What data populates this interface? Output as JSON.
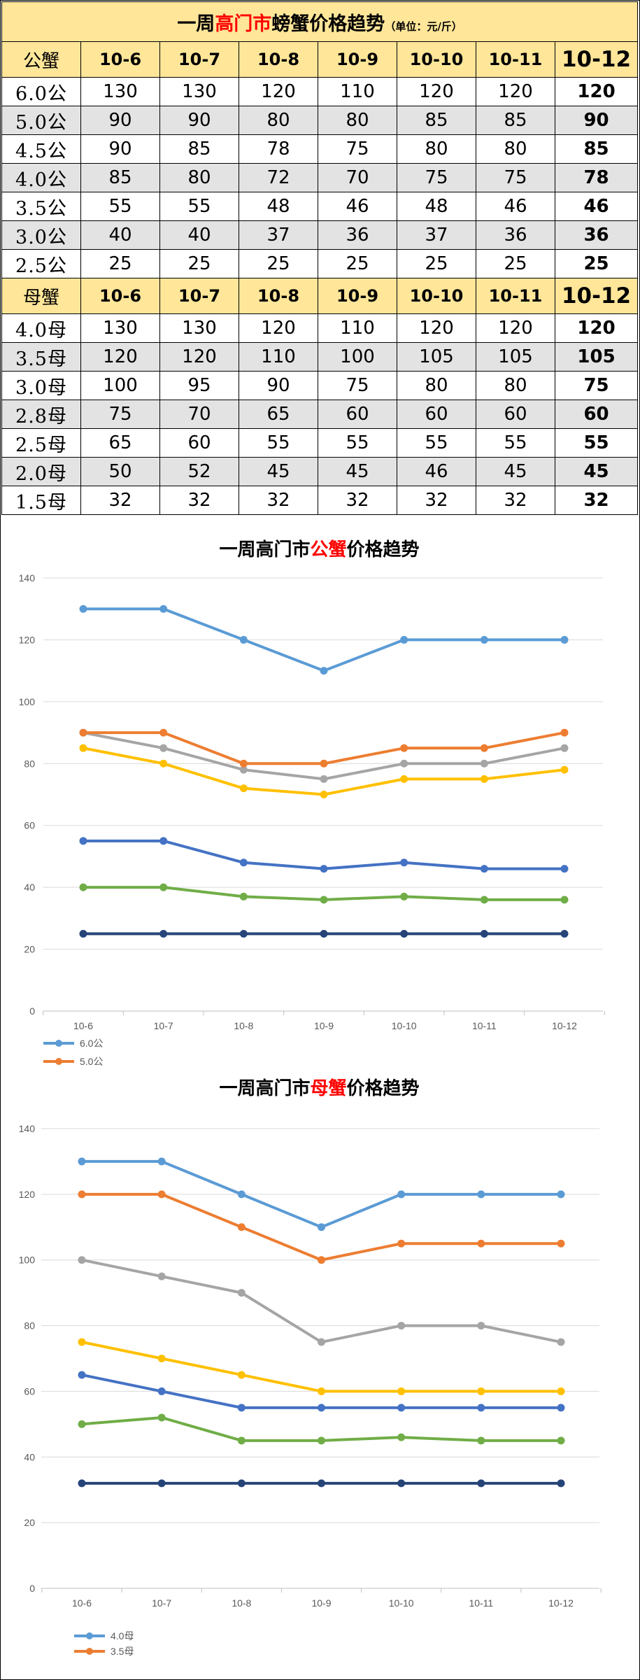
{
  "table": {
    "title_pre": "一周",
    "title_red": "高门市",
    "title_post": "螃蟹价格趋势",
    "unit": "（单位：元/斤）",
    "dates": [
      "10-6",
      "10-7",
      "10-8",
      "10-9",
      "10-10",
      "10-11",
      "10-12"
    ],
    "male_header": "公蟹",
    "male_rows": [
      {
        "label": "6.0公",
        "values": [
          "130",
          "130",
          "120",
          "110",
          "120",
          "120",
          "120"
        ]
      },
      {
        "label": "5.0公",
        "values": [
          "90",
          "90",
          "80",
          "80",
          "85",
          "85",
          "90"
        ]
      },
      {
        "label": "4.5公",
        "values": [
          "90",
          "85",
          "78",
          "75",
          "80",
          "80",
          "85"
        ]
      },
      {
        "label": "4.0公",
        "values": [
          "85",
          "80",
          "72",
          "70",
          "75",
          "75",
          "78"
        ]
      },
      {
        "label": "3.5公",
        "values": [
          "55",
          "55",
          "48",
          "46",
          "48",
          "46",
          "46"
        ]
      },
      {
        "label": "3.0公",
        "values": [
          "40",
          "40",
          "37",
          "36",
          "37",
          "36",
          "36"
        ]
      },
      {
        "label": "2.5公",
        "values": [
          "25",
          "25",
          "25",
          "25",
          "25",
          "25",
          "25"
        ]
      }
    ],
    "female_header": "母蟹",
    "female_rows": [
      {
        "label": "4.0母",
        "values": [
          "130",
          "130",
          "120",
          "110",
          "120",
          "120",
          "120"
        ]
      },
      {
        "label": "3.5母",
        "values": [
          "120",
          "120",
          "110",
          "100",
          "105",
          "105",
          "105"
        ]
      },
      {
        "label": "3.0母",
        "values": [
          "100",
          "95",
          "90",
          "75",
          "80",
          "80",
          "75"
        ]
      },
      {
        "label": "2.8母",
        "values": [
          "75",
          "70",
          "65",
          "60",
          "60",
          "60",
          "60"
        ]
      },
      {
        "label": "2.5母",
        "values": [
          "65",
          "60",
          "55",
          "55",
          "55",
          "55",
          "55"
        ]
      },
      {
        "label": "2.0母",
        "values": [
          "50",
          "52",
          "45",
          "45",
          "46",
          "45",
          "45"
        ]
      },
      {
        "label": "1.5母",
        "values": [
          "32",
          "32",
          "32",
          "32",
          "32",
          "32",
          "32"
        ]
      }
    ]
  },
  "chart_data": [
    {
      "type": "line",
      "title_pre": "一周高门市",
      "title_red": "公蟹",
      "title_post": "价格趋势",
      "categories": [
        "10-6",
        "10-7",
        "10-8",
        "10-9",
        "10-10",
        "10-11",
        "10-12"
      ],
      "ylim": [
        0,
        140
      ],
      "yticks": [
        0,
        20,
        40,
        60,
        80,
        100,
        120,
        140
      ],
      "grid": true,
      "legend_position": "bottom-left",
      "visible_legend": [
        "6.0公",
        "5.0公"
      ],
      "series": [
        {
          "name": "6.0公",
          "color": "#5B9BD5",
          "values": [
            130,
            130,
            120,
            110,
            120,
            120,
            120
          ]
        },
        {
          "name": "5.0公",
          "color": "#ED7D31",
          "values": [
            90,
            90,
            80,
            80,
            85,
            85,
            90
          ]
        },
        {
          "color": "#A5A5A5",
          "values": [
            90,
            85,
            78,
            75,
            80,
            80,
            85
          ]
        },
        {
          "color": "#FFC000",
          "values": [
            85,
            80,
            72,
            70,
            75,
            75,
            78
          ]
        },
        {
          "color": "#4472C4",
          "values": [
            55,
            55,
            48,
            46,
            48,
            46,
            46
          ]
        },
        {
          "color": "#70AD47",
          "values": [
            40,
            40,
            37,
            36,
            37,
            36,
            36
          ]
        },
        {
          "color": "#264478",
          "values": [
            25,
            25,
            25,
            25,
            25,
            25,
            25
          ]
        }
      ]
    },
    {
      "type": "line",
      "title_pre": "一周高门市",
      "title_red": "母蟹",
      "title_post": "价格趋势",
      "categories": [
        "10-6",
        "10-7",
        "10-8",
        "10-9",
        "10-10",
        "10-11",
        "10-12"
      ],
      "ylim": [
        0,
        140
      ],
      "yticks": [
        0,
        20,
        40,
        60,
        80,
        100,
        120,
        140
      ],
      "grid": true,
      "legend_position": "bottom-left",
      "visible_legend": [
        "4.0母",
        "3.5母"
      ],
      "series": [
        {
          "name": "4.0母",
          "color": "#5B9BD5",
          "values": [
            130,
            130,
            120,
            110,
            120,
            120,
            120
          ]
        },
        {
          "name": "3.5母",
          "color": "#ED7D31",
          "values": [
            120,
            120,
            110,
            100,
            105,
            105,
            105
          ]
        },
        {
          "color": "#A5A5A5",
          "values": [
            100,
            95,
            90,
            75,
            80,
            80,
            75
          ]
        },
        {
          "color": "#FFC000",
          "values": [
            75,
            70,
            65,
            60,
            60,
            60,
            60
          ]
        },
        {
          "color": "#4472C4",
          "values": [
            65,
            60,
            55,
            55,
            55,
            55,
            55
          ]
        },
        {
          "color": "#70AD47",
          "values": [
            50,
            52,
            45,
            45,
            46,
            45,
            45
          ]
        },
        {
          "color": "#264478",
          "values": [
            32,
            32,
            32,
            32,
            32,
            32,
            32
          ]
        }
      ]
    }
  ]
}
